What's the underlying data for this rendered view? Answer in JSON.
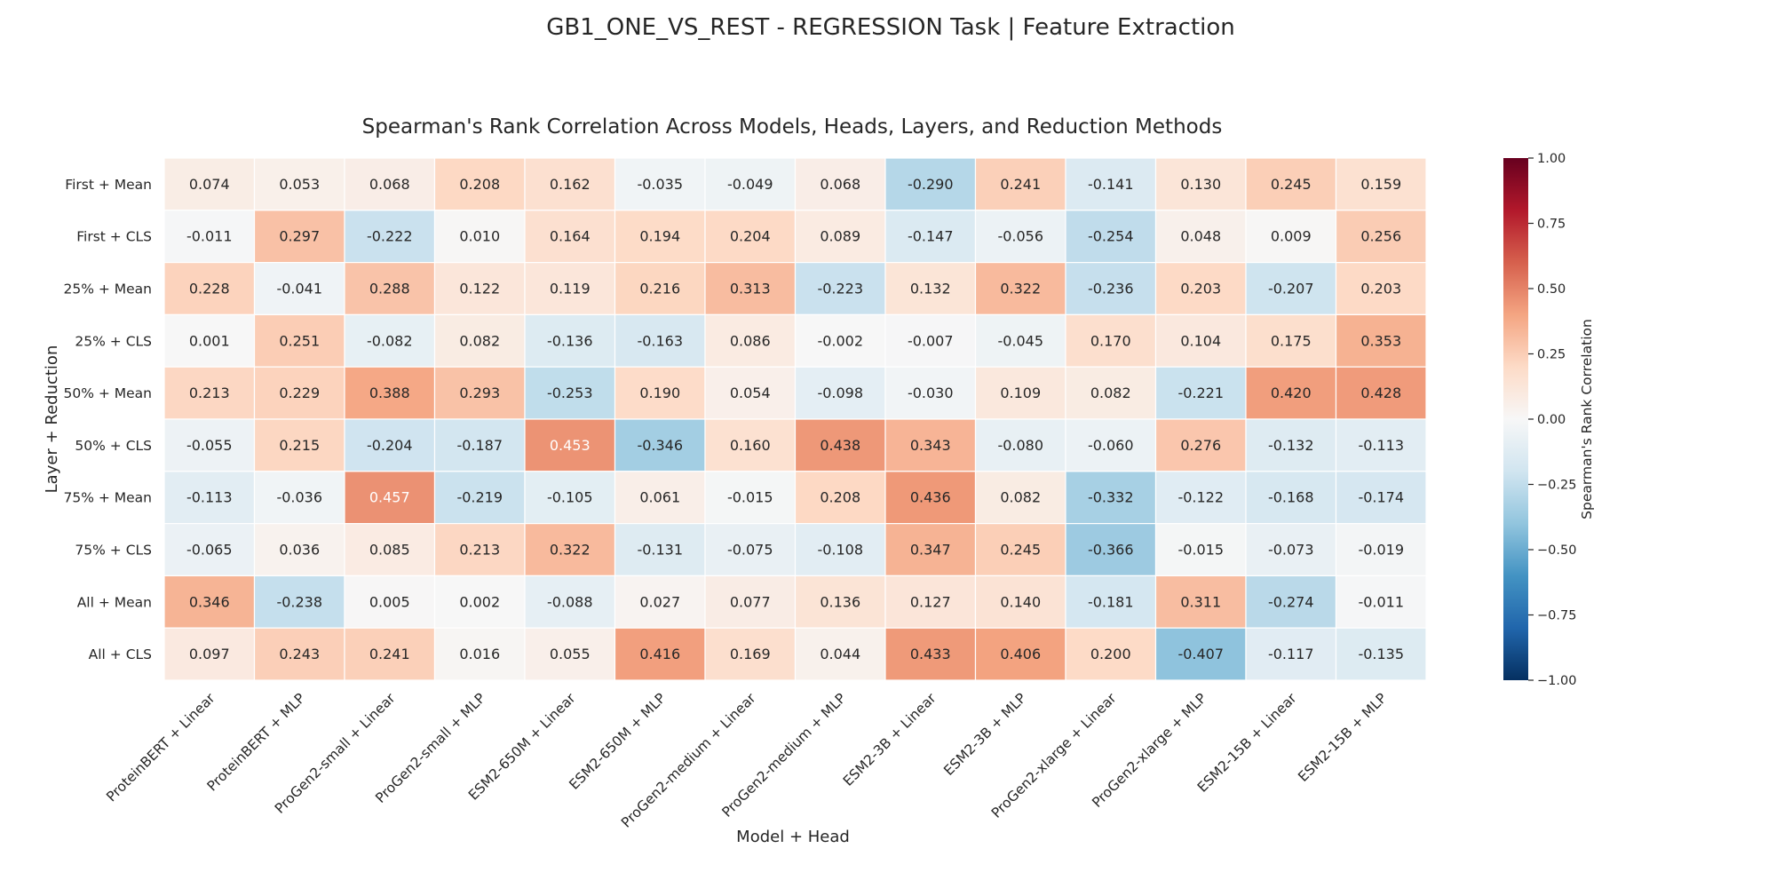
{
  "title": "GB1_ONE_VS_REST - REGRESSION Task | Feature Extraction",
  "chart_data": {
    "type": "heatmap",
    "title": "Spearman's Rank Correlation Across Models, Heads, Layers, and Reduction Methods",
    "xlabel": "Model + Head",
    "ylabel": "Layer + Reduction",
    "x_categories": [
      "ProteinBERT + Linear",
      "ProteinBERT + MLP",
      "ProGen2-small + Linear",
      "ProGen2-small + MLP",
      "ESM2-650M + Linear",
      "ESM2-650M + MLP",
      "ProGen2-medium + Linear",
      "ProGen2-medium + MLP",
      "ESM2-3B + Linear",
      "ESM2-3B + MLP",
      "ProGen2-xlarge + Linear",
      "ProGen2-xlarge + MLP",
      "ESM2-15B + Linear",
      "ESM2-15B + MLP"
    ],
    "y_categories": [
      "First + Mean",
      "First + CLS",
      "25% + Mean",
      "25% + CLS",
      "50% + Mean",
      "50% + CLS",
      "75% + Mean",
      "75% + CLS",
      "All + Mean",
      "All + CLS"
    ],
    "values": [
      [
        0.074,
        0.053,
        0.068,
        0.208,
        0.162,
        -0.035,
        -0.049,
        0.068,
        -0.29,
        0.241,
        -0.141,
        0.13,
        0.245,
        0.159
      ],
      [
        -0.011,
        0.297,
        -0.222,
        0.01,
        0.164,
        0.194,
        0.204,
        0.089,
        -0.147,
        -0.056,
        -0.254,
        0.048,
        0.009,
        0.256
      ],
      [
        0.228,
        -0.041,
        0.288,
        0.122,
        0.119,
        0.216,
        0.313,
        -0.223,
        0.132,
        0.322,
        -0.236,
        0.203,
        -0.207,
        0.203
      ],
      [
        0.001,
        0.251,
        -0.082,
        0.082,
        -0.136,
        -0.163,
        0.086,
        -0.002,
        -0.007,
        -0.045,
        0.17,
        0.104,
        0.175,
        0.353
      ],
      [
        0.213,
        0.229,
        0.388,
        0.293,
        -0.253,
        0.19,
        0.054,
        -0.098,
        -0.03,
        0.109,
        0.082,
        -0.221,
        0.42,
        0.428
      ],
      [
        -0.055,
        0.215,
        -0.204,
        -0.187,
        0.453,
        -0.346,
        0.16,
        0.438,
        0.343,
        -0.08,
        -0.06,
        0.276,
        -0.132,
        -0.113
      ],
      [
        -0.113,
        -0.036,
        0.457,
        -0.219,
        -0.105,
        0.061,
        -0.015,
        0.208,
        0.436,
        0.082,
        -0.332,
        -0.122,
        -0.168,
        -0.174
      ],
      [
        -0.065,
        0.036,
        0.085,
        0.213,
        0.322,
        -0.131,
        -0.075,
        -0.108,
        0.347,
        0.245,
        -0.366,
        -0.015,
        -0.073,
        -0.019
      ],
      [
        0.346,
        -0.238,
        0.005,
        0.002,
        -0.088,
        0.027,
        0.077,
        0.136,
        0.127,
        0.14,
        -0.181,
        0.311,
        -0.274,
        -0.011
      ],
      [
        0.097,
        0.243,
        0.241,
        0.016,
        0.055,
        0.416,
        0.169,
        0.044,
        0.433,
        0.406,
        0.2,
        -0.407,
        -0.117,
        -0.135
      ]
    ],
    "color_scale": "RdBu_r",
    "vmin": -1.0,
    "vmax": 1.0,
    "value_format": "3 decimals",
    "colorbar": {
      "label": "Spearman's Rank Correlation",
      "ticks": [
        1.0,
        0.75,
        0.5,
        0.25,
        0.0,
        -0.25,
        -0.5,
        -0.75,
        -1.0
      ],
      "tick_labels": [
        "1.00",
        "0.75",
        "0.50",
        "0.25",
        "0.00",
        "−0.25",
        "−0.50",
        "−0.75",
        "−1.00"
      ]
    },
    "grid": true
  }
}
